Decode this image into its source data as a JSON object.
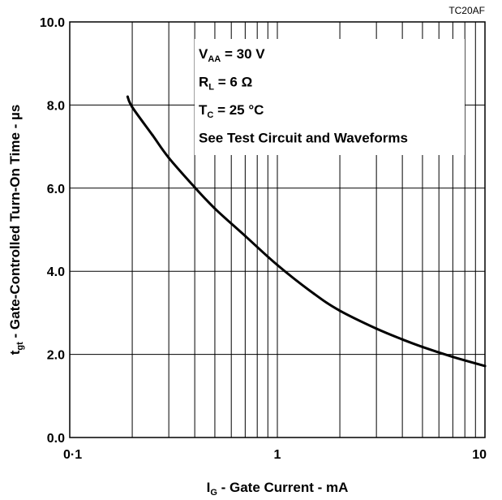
{
  "chart_data": {
    "type": "line",
    "figure_code": "TC20AF",
    "xlabel": {
      "main": "I",
      "sub": "G",
      "rest": " - Gate Current - mA"
    },
    "ylabel": {
      "main": "t",
      "sub": "gt",
      "rest": " - Gate-Controlled Turn-On Time - µs"
    },
    "x_scale": "log",
    "xlim": [
      0.1,
      10
    ],
    "ylim": [
      0,
      10
    ],
    "grid": true,
    "x_ticks": [
      {
        "value": 0.1,
        "label": "0·1"
      },
      {
        "value": 1,
        "label": "1"
      },
      {
        "value": 10,
        "label": "10"
      }
    ],
    "y_ticks": [
      {
        "value": 0,
        "label": "0.0"
      },
      {
        "value": 2,
        "label": "2.0"
      },
      {
        "value": 4,
        "label": "4.0"
      },
      {
        "value": 6,
        "label": "6.0"
      },
      {
        "value": 8,
        "label": "8.0"
      },
      {
        "value": 10,
        "label": "10.0"
      }
    ],
    "annotations": [
      {
        "main": "V",
        "sub": "AA",
        "rest": " = 30 V"
      },
      {
        "main": "R",
        "sub": "L",
        "rest": " = 6 Ω"
      },
      {
        "main": "T",
        "sub": "C",
        "rest": " = 25 °C"
      },
      {
        "main": "See Test Circuit and Waveforms",
        "sub": "",
        "rest": ""
      }
    ],
    "series": [
      {
        "x": [
          0.19,
          0.2,
          0.25,
          0.3,
          0.4,
          0.5,
          0.7,
          1.0,
          1.5,
          2.0,
          3.0,
          4.0,
          5.0,
          7.0,
          10.0
        ],
        "y": [
          8.2,
          7.95,
          7.28,
          6.73,
          6.02,
          5.51,
          4.85,
          4.15,
          3.46,
          3.05,
          2.62,
          2.36,
          2.18,
          1.94,
          1.72
        ]
      }
    ]
  }
}
